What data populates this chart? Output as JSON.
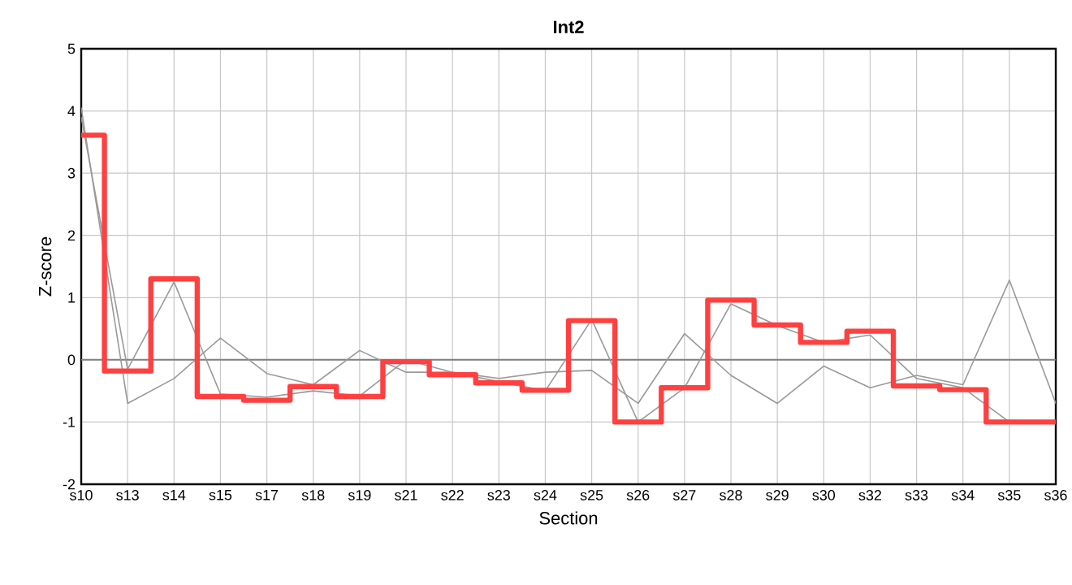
{
  "chart_data": {
    "type": "line",
    "title": "Int2",
    "xlabel": "Section",
    "ylabel": "Z-score",
    "categories": [
      "s10",
      "s13",
      "s14",
      "s15",
      "s17",
      "s18",
      "s19",
      "s21",
      "s22",
      "s23",
      "s24",
      "s25",
      "s26",
      "s27",
      "s28",
      "s29",
      "s30",
      "s32",
      "s33",
      "s34",
      "s35",
      "s36"
    ],
    "series": [
      {
        "color": "#999999",
        "values": [
          4.05,
          -0.7,
          -0.3,
          0.35,
          -0.22,
          -0.4,
          0.15,
          -0.2,
          -0.2,
          -0.3,
          -0.2,
          -0.17,
          -0.7,
          0.42,
          -0.25,
          -0.7,
          -0.1,
          -0.45,
          -0.25,
          -0.4,
          1.28,
          -0.7
        ]
      },
      {
        "color": "#999999",
        "values": [
          3.9,
          -0.15,
          1.25,
          -0.55,
          -0.6,
          -0.5,
          -0.58,
          0.0,
          -0.2,
          -0.35,
          -0.5,
          0.65,
          -1.0,
          -0.45,
          0.9,
          0.55,
          0.28,
          0.4,
          -0.3,
          -0.45,
          -1.0,
          -1.0
        ]
      },
      {
        "type": "step",
        "color": "#ff4040",
        "values": [
          3.61,
          -0.18,
          1.3,
          -0.59,
          -0.65,
          -0.43,
          -0.59,
          -0.03,
          -0.24,
          -0.37,
          -0.49,
          0.63,
          -1.0,
          -0.45,
          0.96,
          0.56,
          0.28,
          0.46,
          -0.42,
          -0.48,
          -1.0,
          -1.0
        ]
      }
    ],
    "ylim": [
      -2,
      5
    ],
    "yticks": [
      -2,
      -1,
      0,
      1,
      2,
      3,
      4,
      5
    ],
    "ref_lines": [
      {
        "axis": "y",
        "value": 0,
        "color": "#808080"
      }
    ],
    "grid": true,
    "line_style": "solid"
  }
}
